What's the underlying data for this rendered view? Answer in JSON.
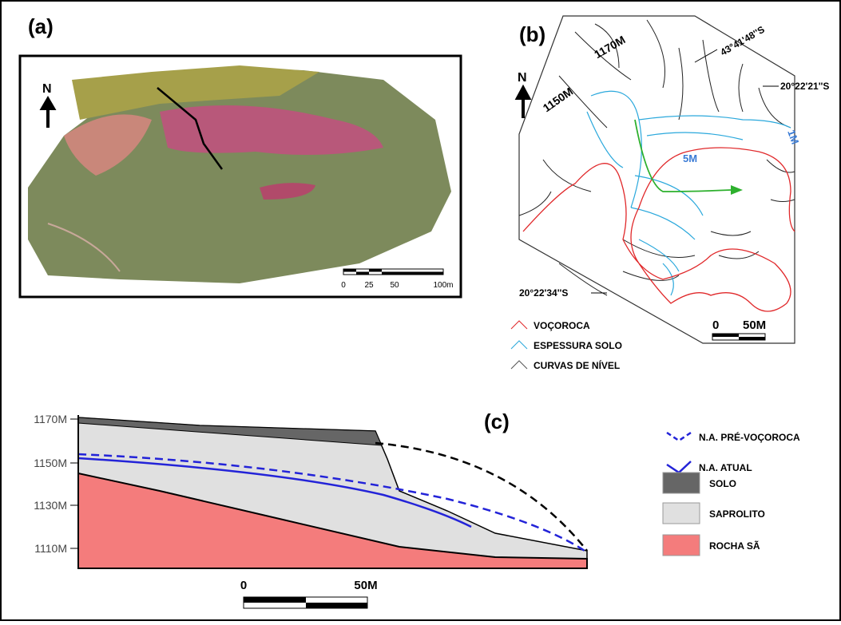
{
  "panels": {
    "a": {
      "label": "(a)",
      "north": "N",
      "scale": [
        "0",
        "25",
        "50",
        "100m"
      ]
    },
    "b": {
      "label": "(b)",
      "north": "N",
      "contours": [
        "1170M",
        "1150M"
      ],
      "soil": [
        "5M",
        "1M"
      ],
      "coords": [
        "43°41'48''S",
        "20°22'21''S",
        "20°22'34''S"
      ],
      "legend": [
        "VOÇOROCA",
        "ESPESSURA SOLO",
        "CURVAS DE NÍVEL"
      ],
      "scale": [
        "0",
        "50M"
      ]
    },
    "c": {
      "label": "(c)",
      "elevations": [
        "1170M",
        "1150M",
        "1130M",
        "1110M"
      ],
      "scale": [
        "0",
        "50M"
      ],
      "legend": [
        "N.A. PRÉ-VOÇOROCA",
        "N.A. ATUAL",
        "SOLO",
        "SAPROLITO",
        "ROCHA SÃ"
      ]
    }
  }
}
